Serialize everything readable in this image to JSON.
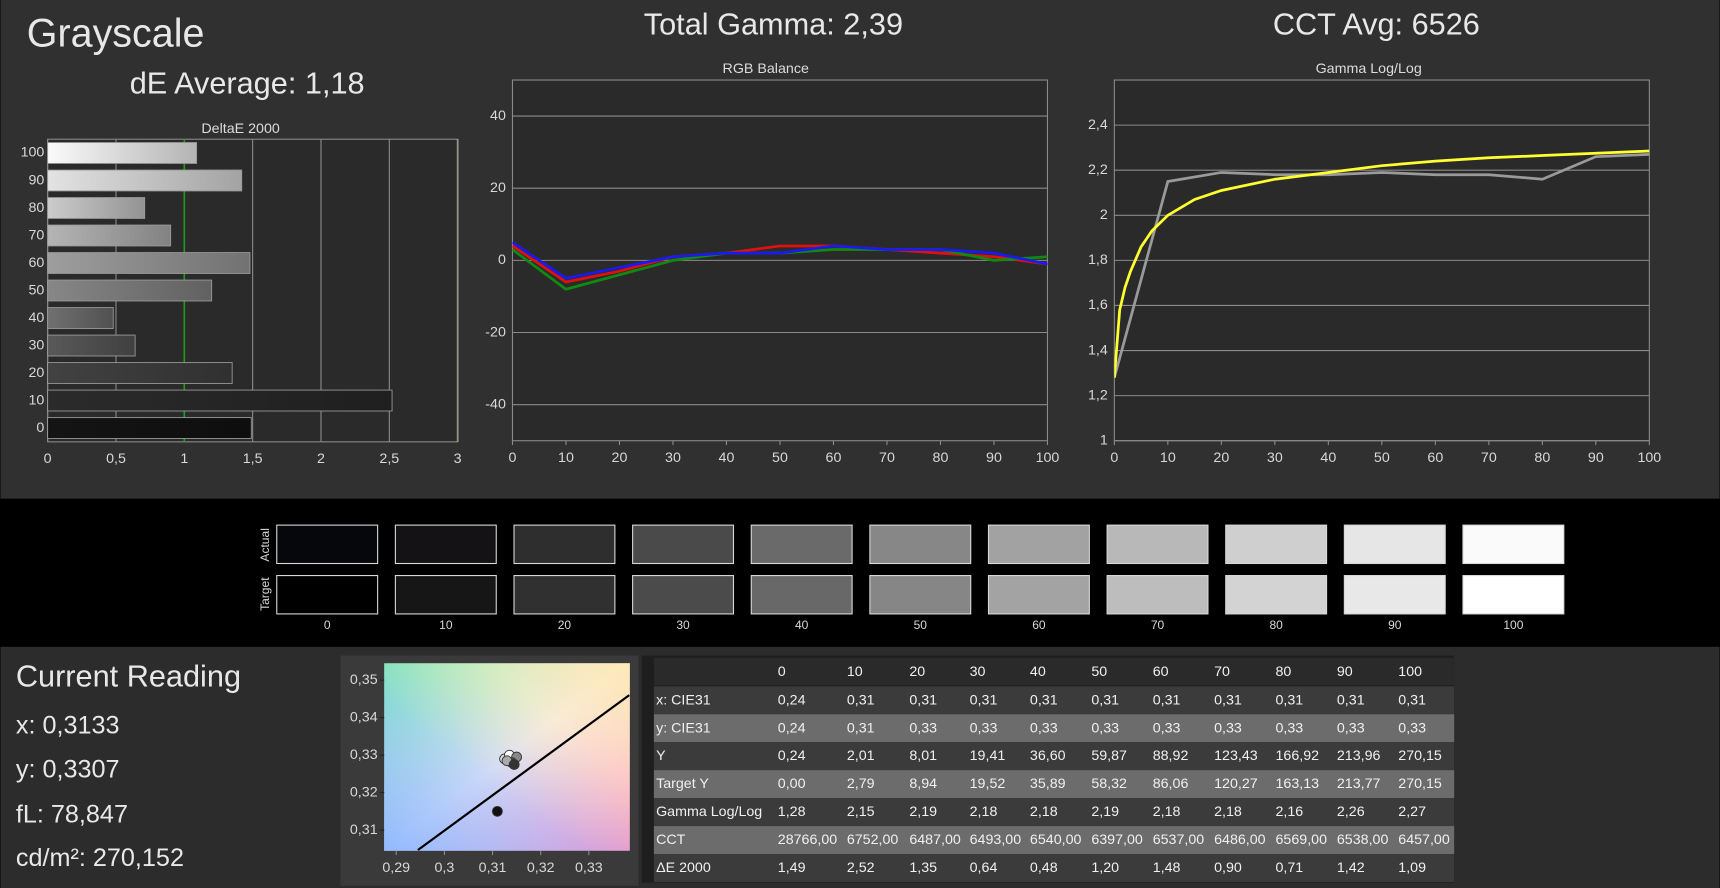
{
  "header": {
    "title": "Grayscale",
    "de_average": "dE Average: 1,18",
    "total_gamma": "Total Gamma: 2,39",
    "cct_avg": "CCT Avg: 6526"
  },
  "chart_data": [
    {
      "type": "bar",
      "horizontal": true,
      "title": "DeltaE 2000",
      "categories": [
        "100",
        "90",
        "80",
        "70",
        "60",
        "50",
        "40",
        "30",
        "20",
        "10",
        "0"
      ],
      "values": [
        1.09,
        1.42,
        0.71,
        0.9,
        1.48,
        1.2,
        0.48,
        0.64,
        1.35,
        2.52,
        1.49
      ],
      "xlim": [
        0,
        3
      ],
      "xticks": [
        0,
        {
          "value": 0.5,
          "label": "0,5"
        },
        1,
        {
          "value": 1.5,
          "label": "1,5"
        },
        2,
        {
          "value": 2.5,
          "label": "2,5"
        },
        3
      ],
      "threshold": 1,
      "threshold_color": "#1f9a1f",
      "grid": true
    },
    {
      "type": "line",
      "title": "RGB Balance",
      "x": [
        0,
        10,
        20,
        30,
        40,
        50,
        60,
        70,
        80,
        90,
        100
      ],
      "xlim": [
        0,
        100
      ],
      "xticks": [
        0,
        10,
        20,
        30,
        40,
        50,
        60,
        70,
        80,
        90,
        100
      ],
      "ylim": [
        -50,
        50
      ],
      "yticks": [
        -40,
        -20,
        0,
        20,
        40
      ],
      "grid": true,
      "series": [
        {
          "color": "#e01010",
          "values": [
            4,
            -6,
            -3,
            1,
            2,
            4,
            4,
            3,
            2,
            1,
            -1
          ]
        },
        {
          "color": "#108a10",
          "values": [
            3,
            -8,
            -4,
            0,
            2,
            2,
            3,
            3,
            3,
            0,
            1
          ]
        },
        {
          "color": "#1a1aee",
          "values": [
            5,
            -5,
            -2,
            1,
            2,
            2,
            4,
            3,
            3,
            2,
            -1
          ]
        }
      ]
    },
    {
      "type": "line",
      "title": "Gamma Log/Log",
      "xlim": [
        0,
        100
      ],
      "xticks": [
        0,
        10,
        20,
        30,
        40,
        50,
        60,
        70,
        80,
        90,
        100
      ],
      "ylim": [
        1,
        2.6
      ],
      "yticks": [
        1,
        {
          "value": 1.2,
          "label": "1,2"
        },
        {
          "value": 1.4,
          "label": "1,4"
        },
        {
          "value": 1.6,
          "label": "1,6"
        },
        {
          "value": 1.8,
          "label": "1,8"
        },
        2,
        {
          "value": 2.2,
          "label": "2,2"
        },
        {
          "value": 2.4,
          "label": "2,4"
        }
      ],
      "grid": true,
      "series": [
        {
          "color": "#9a9a9a",
          "x": [
            0,
            10,
            20,
            30,
            40,
            50,
            60,
            70,
            80,
            90,
            100
          ],
          "values": [
            1.28,
            2.15,
            2.19,
            2.18,
            2.18,
            2.19,
            2.18,
            2.18,
            2.16,
            2.26,
            2.27
          ]
        },
        {
          "color": "#ffff30",
          "x": [
            0,
            1,
            2,
            3,
            5,
            7,
            10,
            15,
            20,
            30,
            40,
            50,
            60,
            70,
            80,
            90,
            100
          ],
          "values": [
            1.28,
            1.58,
            1.68,
            1.75,
            1.86,
            1.93,
            2.0,
            2.07,
            2.11,
            2.16,
            2.19,
            2.22,
            2.24,
            2.255,
            2.265,
            2.275,
            2.285
          ]
        }
      ]
    },
    {
      "type": "scatter",
      "xlim": [
        0.2875,
        0.3385
      ],
      "xticks": [
        {
          "value": 0.29,
          "label": "0,29"
        },
        {
          "value": 0.3,
          "label": "0,3"
        },
        {
          "value": 0.31,
          "label": "0,31"
        },
        {
          "value": 0.32,
          "label": "0,32"
        },
        {
          "value": 0.33,
          "label": "0,33"
        }
      ],
      "ylim": [
        0.3045,
        0.3545
      ],
      "yticks": [
        {
          "value": 0.31,
          "label": "0,31"
        },
        {
          "value": 0.32,
          "label": "0,32"
        },
        {
          "value": 0.33,
          "label": "0,33"
        },
        {
          "value": 0.34,
          "label": "0,34"
        },
        {
          "value": 0.35,
          "label": "0,35"
        }
      ],
      "grid": false,
      "series": [
        {
          "kind": "line",
          "color": "#000000",
          "x": [
            0.2945,
            0.3384
          ],
          "values": [
            0.3047,
            0.346
          ]
        },
        {
          "kind": "points",
          "colors": [
            "#dddddd",
            "#ffffff",
            "#888888",
            "#555555",
            "#aaaaaa",
            "#333333"
          ],
          "x": [
            0.3125,
            0.3135,
            0.315,
            0.314,
            0.313,
            0.3145
          ],
          "values": [
            0.329,
            0.33,
            0.3295,
            0.328,
            0.3285,
            0.3275
          ]
        },
        {
          "kind": "points",
          "color": "#111111",
          "x": [
            0.311
          ],
          "values": [
            0.315
          ]
        }
      ]
    }
  ],
  "swatches": {
    "row_labels": [
      "Actual",
      "Target"
    ],
    "labels": [
      "0",
      "10",
      "20",
      "30",
      "40",
      "50",
      "60",
      "70",
      "80",
      "90",
      "100"
    ],
    "actual_colors": [
      "#05070c",
      "#141214",
      "#2e2e2e",
      "#4a4a4a",
      "#6a6a6a",
      "#878787",
      "#a2a2a2",
      "#b8b8b8",
      "#cfcfcf",
      "#e6e6e6",
      "#fafafa"
    ],
    "target_colors": [
      "#000000",
      "#161616",
      "#303030",
      "#4b4b4b",
      "#686868",
      "#868686",
      "#a3a3a3",
      "#bdbdbd",
      "#d3d3d3",
      "#e8e8e8",
      "#ffffff"
    ]
  },
  "current_reading": {
    "title": "Current Reading",
    "lines": [
      "x: 0,3133",
      "y: 0,3307",
      "fL: 78,847",
      "cd/m²: 270,152"
    ]
  },
  "table": {
    "header": [
      "0",
      "10",
      "20",
      "30",
      "40",
      "50",
      "60",
      "70",
      "80",
      "90",
      "100"
    ],
    "rows": [
      [
        "x: CIE31",
        "0,24",
        "0,31",
        "0,31",
        "0,31",
        "0,31",
        "0,31",
        "0,31",
        "0,31",
        "0,31",
        "0,31",
        "0,31"
      ],
      [
        "y: CIE31",
        "0,24",
        "0,31",
        "0,33",
        "0,33",
        "0,33",
        "0,33",
        "0,33",
        "0,33",
        "0,33",
        "0,33",
        "0,33"
      ],
      [
        "Y",
        "0,24",
        "2,01",
        "8,01",
        "19,41",
        "36,60",
        "59,87",
        "88,92",
        "123,43",
        "166,92",
        "213,96",
        "270,15"
      ],
      [
        "Target Y",
        "0,00",
        "2,79",
        "8,94",
        "19,52",
        "35,89",
        "58,32",
        "86,06",
        "120,27",
        "163,13",
        "213,77",
        "270,15"
      ],
      [
        "Gamma Log/Log",
        "1,28",
        "2,15",
        "2,19",
        "2,18",
        "2,18",
        "2,19",
        "2,18",
        "2,18",
        "2,16",
        "2,26",
        "2,27"
      ],
      [
        "CCT",
        "28766,00",
        "6752,00",
        "6487,00",
        "6493,00",
        "6540,00",
        "6397,00",
        "6537,00",
        "6486,00",
        "6569,00",
        "6538,00",
        "6457,00"
      ],
      [
        "ΔE 2000",
        "1,49",
        "2,52",
        "1,35",
        "0,64",
        "0,48",
        "1,20",
        "1,48",
        "0,90",
        "0,71",
        "1,42",
        "1,09"
      ]
    ]
  }
}
